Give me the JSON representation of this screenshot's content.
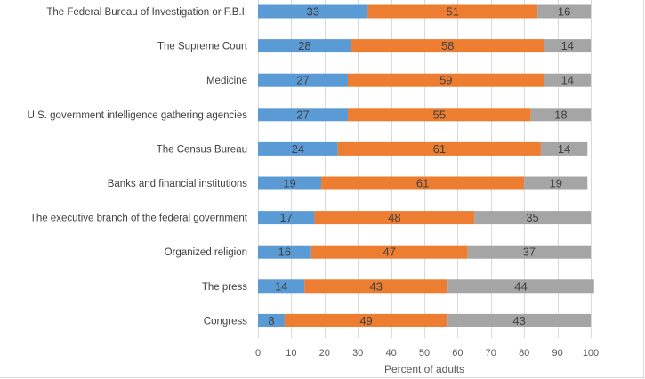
{
  "chart_data": {
    "type": "bar",
    "orientation": "horizontal",
    "stacked": true,
    "categories": [
      "The Federal Bureau of Investigation or F.B.I.",
      "The Supreme Court",
      "Medicine",
      "U.S. government intelligence gathering agencies",
      "The Census Bureau",
      "Banks and financial institutions",
      "The executive branch of the federal government",
      "Organized religion",
      "The press",
      "Congress"
    ],
    "series": [
      {
        "color": "#5b9bd5",
        "values": [
          33,
          28,
          27,
          27,
          24,
          19,
          17,
          16,
          14,
          8
        ]
      },
      {
        "color": "#ed7d31",
        "values": [
          51,
          58,
          59,
          55,
          61,
          61,
          48,
          47,
          43,
          49
        ]
      },
      {
        "color": "#a5a5a5",
        "values": [
          16,
          14,
          14,
          18,
          14,
          19,
          35,
          37,
          44,
          43
        ]
      }
    ],
    "xlabel": "Percent of adults",
    "ylabel": "",
    "xlim": [
      0,
      100
    ],
    "xticks": [
      0,
      10,
      20,
      30,
      40,
      50,
      60,
      70,
      80,
      90,
      100
    ],
    "grid": true,
    "legend": "none"
  }
}
